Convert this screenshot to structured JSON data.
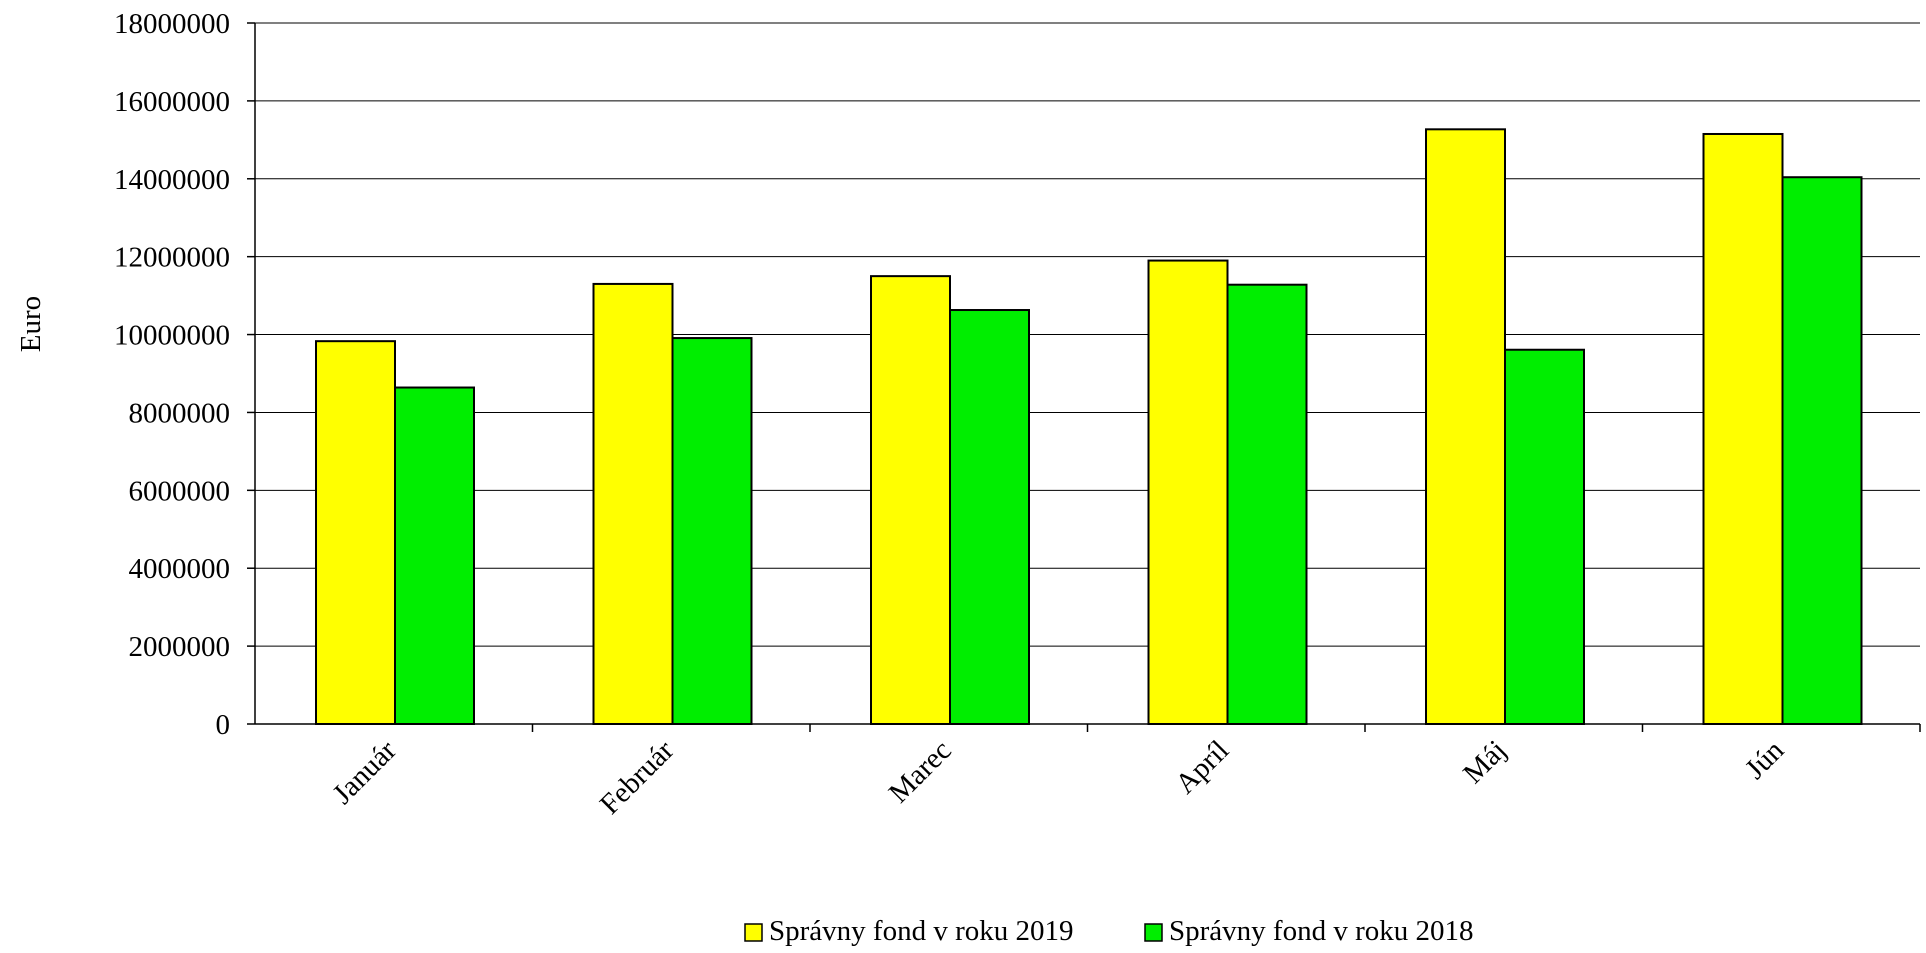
{
  "chart_data": {
    "type": "bar",
    "title": "",
    "xlabel": "",
    "ylabel": "Euro",
    "ylim": [
      0,
      18000000
    ],
    "yticks": [
      0,
      2000000,
      4000000,
      6000000,
      8000000,
      10000000,
      12000000,
      14000000,
      16000000,
      18000000
    ],
    "grid": true,
    "legend_position": "bottom-center",
    "categories": [
      "Január",
      "Február",
      "Marec",
      "Apríl",
      "Máj",
      "Jún"
    ],
    "series": [
      {
        "name": "Správny fond v roku 2019",
        "color": "#FFFF00",
        "values": [
          9830000,
          11300000,
          11500000,
          11900000,
          15270000,
          15150000
        ]
      },
      {
        "name": "Správny fond v roku 2018",
        "color": "#00EE00",
        "values": [
          8640000,
          9910000,
          10630000,
          11280000,
          9610000,
          14040000
        ]
      }
    ]
  }
}
